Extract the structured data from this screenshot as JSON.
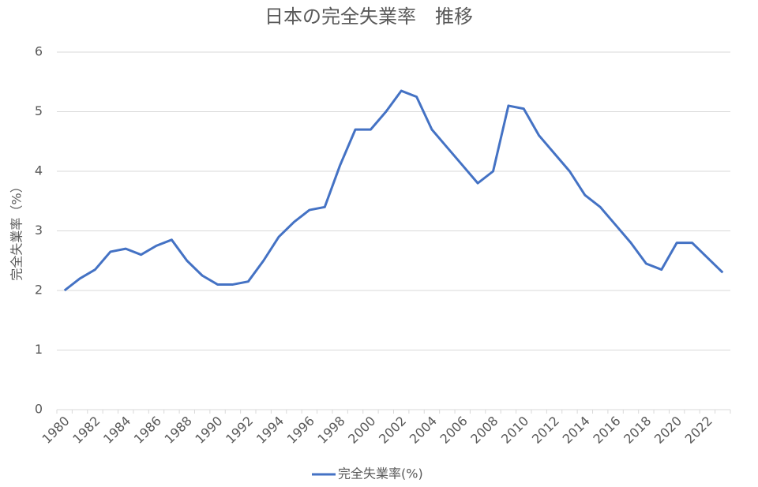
{
  "chart_data": {
    "type": "line",
    "title": "日本の完全失業率　推移",
    "y_label": "完全失業率（%）",
    "categories": [
      "1980",
      null,
      "1982",
      null,
      "1984",
      null,
      "1986",
      null,
      "1988",
      null,
      "1990",
      null,
      "1992",
      null,
      "1994",
      null,
      "1996",
      null,
      "1998",
      null,
      "2000",
      null,
      "2002",
      null,
      "2004",
      null,
      "2006",
      null,
      "2008",
      null,
      "2010",
      null,
      "2012",
      null,
      "2014",
      null,
      "2016",
      null,
      "2018",
      null,
      "2020",
      null,
      "2022",
      null
    ],
    "series": [
      {
        "name": "完全失業率(%)",
        "color": "#4472c4",
        "values": [
          2.0,
          2.2,
          2.35,
          2.65,
          2.7,
          2.6,
          2.75,
          2.85,
          2.5,
          2.25,
          2.1,
          2.1,
          2.15,
          2.5,
          2.9,
          3.15,
          3.35,
          3.4,
          4.1,
          4.7,
          4.7,
          5.0,
          5.35,
          5.25,
          4.7,
          4.4,
          4.1,
          3.8,
          4.0,
          5.1,
          5.05,
          4.6,
          4.3,
          4.0,
          3.6,
          3.4,
          3.1,
          2.8,
          2.45,
          2.35,
          2.8,
          2.8,
          2.55,
          2.3
        ]
      }
    ],
    "ylim": [
      0,
      6
    ],
    "yticks": [
      0,
      1,
      2,
      3,
      4,
      5,
      6
    ],
    "grid": true,
    "legend": "bottom"
  }
}
